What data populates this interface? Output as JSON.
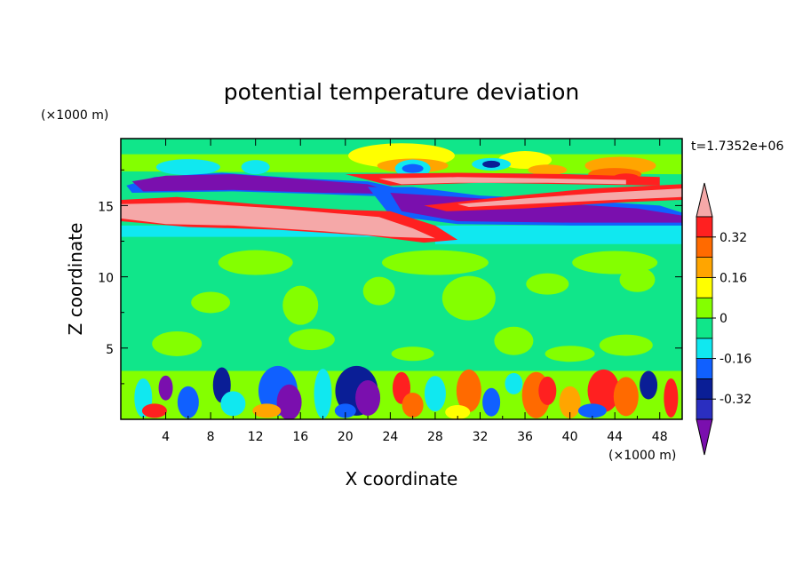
{
  "chart_data": {
    "type": "heatmap",
    "title": "potential temperature deviation",
    "xlabel": "X coordinate",
    "ylabel": "Z coordinate",
    "x_unit": "(×1000 m)",
    "y_unit": "(×1000 m)",
    "time_label": "t=1.7352e+06",
    "xlim": [
      0,
      50
    ],
    "ylim": [
      0,
      19.7
    ],
    "x_ticks": [
      4,
      8,
      12,
      16,
      20,
      24,
      28,
      32,
      36,
      40,
      44,
      48
    ],
    "y_ticks": [
      5,
      10,
      15
    ],
    "colorbar": {
      "levels": [
        -0.4,
        -0.32,
        -0.24,
        -0.16,
        -0.08,
        0,
        0.08,
        0.16,
        0.24,
        0.32,
        0.4
      ],
      "labels": [
        "-0.32",
        "-0.16",
        "0",
        "0.16",
        "0.32"
      ],
      "label_values": [
        -0.32,
        -0.16,
        0,
        0.16,
        0.32
      ],
      "colors": [
        "#7a0fae",
        "#2a2ec0",
        "#0a1e96",
        "#1060ff",
        "#10e8f0",
        "#10e68a",
        "#84ff00",
        "#ffff00",
        "#ffa500",
        "#ff6a00",
        "#ff2020",
        "#f5a8a8"
      ],
      "extend": "both"
    }
  }
}
